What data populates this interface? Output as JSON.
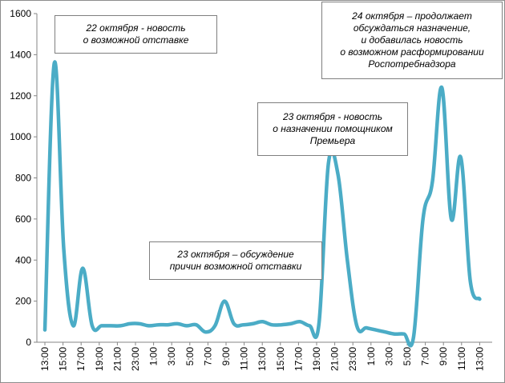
{
  "chart_data": {
    "type": "line",
    "color": "#4bacc6",
    "grid": false,
    "ylim": [
      0,
      1600
    ],
    "yticks": [
      0,
      200,
      400,
      600,
      800,
      1000,
      1200,
      1400,
      1600
    ],
    "xticks": [
      "13:00",
      "15:00",
      "17:00",
      "19:00",
      "21:00",
      "23:00",
      "1:00",
      "3:00",
      "5:00",
      "7:00",
      "9:00",
      "11:00",
      "13:00",
      "15:00",
      "17:00",
      "19:00",
      "21:00",
      "23:00",
      "1:00",
      "3:00",
      "5:00",
      "7:00",
      "9:00",
      "11:00",
      "13:00"
    ],
    "series": [
      {
        "values": [
          60,
          1360,
          450,
          80,
          360,
          80,
          80,
          80,
          80,
          90,
          90,
          80,
          85,
          85,
          90,
          80,
          85,
          50,
          80,
          200,
          90,
          85,
          90,
          100,
          85,
          85,
          90,
          100,
          80,
          90,
          870,
          820,
          400,
          80,
          70,
          60,
          50,
          40,
          40,
          25,
          600,
          780,
          1240,
          600,
          900,
          300,
          210
        ]
      }
    ],
    "annotations": [
      {
        "lines": [
          "22 октября -  новость",
          "о возможной отставке"
        ]
      },
      {
        "lines": [
          "24 октября – продолжает",
          "обсуждаться назначение,",
          "и добавилась новость",
          "о возможном расформировании",
          "Роспотребнадзора"
        ]
      },
      {
        "lines": [
          "23 октября - новость",
          "о назначении помощником",
          "Премьера"
        ]
      },
      {
        "lines": [
          "23 октября – обсуждение",
          "причин возможной отставки"
        ]
      }
    ]
  }
}
